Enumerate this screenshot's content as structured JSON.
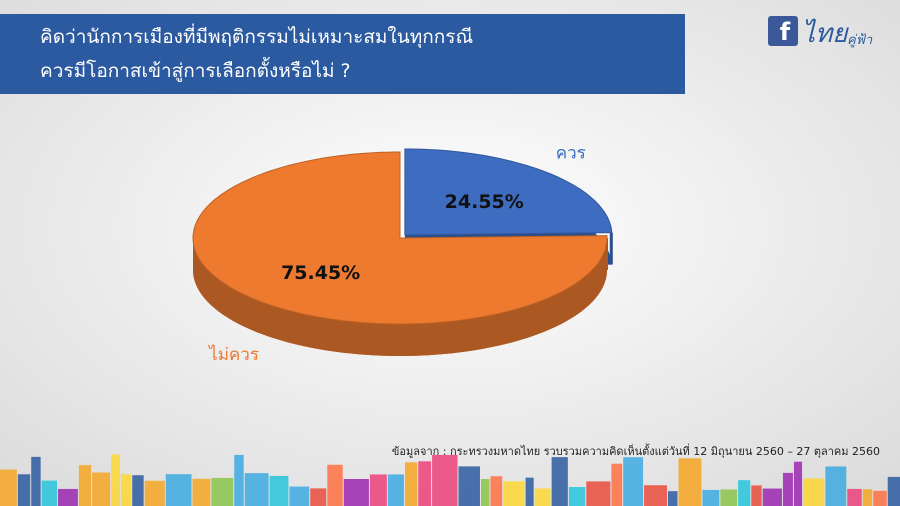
{
  "chart_data": {
    "type": "pie3d",
    "title": [
      "คิดว่านักการเมืองที่มีพฤติกรรมไม่เหมาะสมในทุกกรณี",
      "ควรมีโอกาสเข้าสู่การเลือกตั้งหรือไม่ ?"
    ],
    "categories": [
      "ควร",
      "ไม่ควร"
    ],
    "values": [
      24.55,
      75.45
    ],
    "value_labels": [
      "24.55%",
      "75.45%"
    ],
    "colors": [
      "#3d6cc0",
      "#ee7a30"
    ],
    "source": "ข้อมูลจาก : กระทรวงมหาดไทย  รวบรวมความคิดเห็นตั้งแต่วันที่  12 มิถุนายน 2560 – 27 ตุลาคม 2560"
  },
  "logo": {
    "icon": "f",
    "text": "ไทย",
    "subtext": "คู่ฟ้า"
  }
}
